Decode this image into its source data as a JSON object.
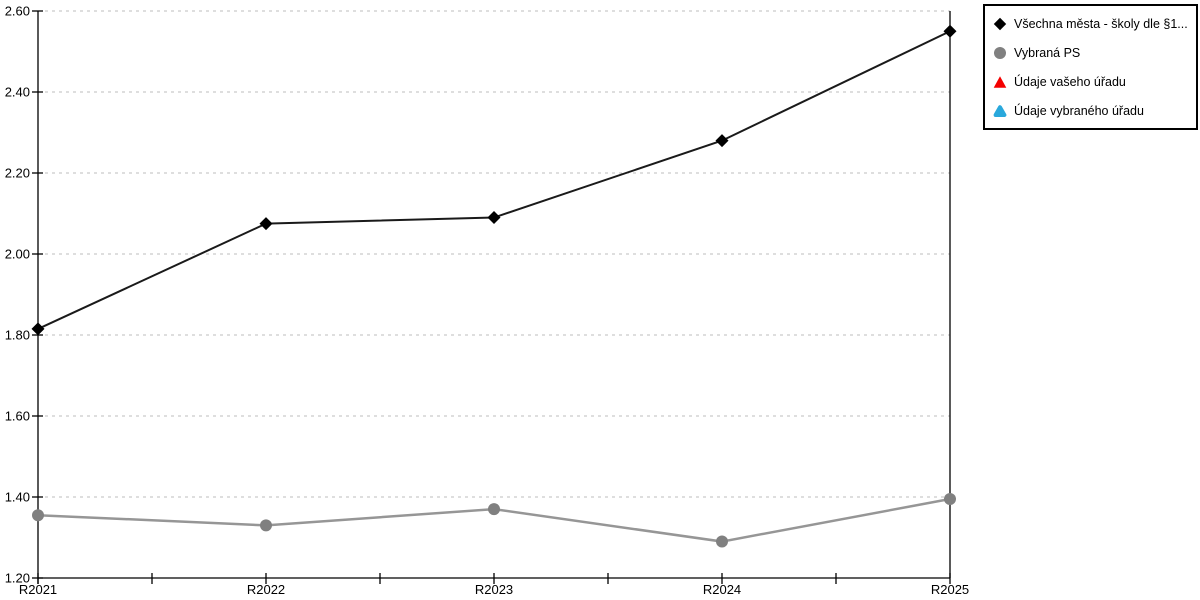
{
  "chart_data": {
    "type": "line",
    "title": "",
    "xlabel": "",
    "ylabel": "",
    "categories": [
      "R2021",
      "R2022",
      "R2023",
      "R2024",
      "R2025"
    ],
    "series": [
      {
        "name": "Všechna města - školy dle §1...",
        "marker": "diamond",
        "marker_icon": "diamond-icon",
        "color": "#000000",
        "line_color": "#1a1a1a",
        "values": [
          1.815,
          2.075,
          2.09,
          2.28,
          2.55
        ]
      },
      {
        "name": "Vybraná PS",
        "marker": "circle",
        "marker_icon": "circle-icon",
        "color": "#808080",
        "line_color": "#969696",
        "values": [
          1.355,
          1.33,
          1.37,
          1.29,
          1.395
        ]
      },
      {
        "name": "Údaje vašeho úřadu",
        "marker": "triangle",
        "marker_icon": "triangle-icon",
        "color": "#f40000",
        "line_color": "#f40000",
        "values": []
      },
      {
        "name": "Údaje vybraného úřadu",
        "marker": "rounded-triangle",
        "marker_icon": "rounded-triangle-icon",
        "color": "#29a8dc",
        "line_color": "#29a8dc",
        "values": []
      }
    ],
    "ylim": [
      1.2,
      2.6
    ],
    "ytick_step": 0.2,
    "ytick_labels": [
      "1.20",
      "1.40",
      "1.60",
      "1.80",
      "2.00",
      "2.20",
      "2.40",
      "2.60"
    ],
    "x_minor_ticks_per_interval": 1,
    "grid": "horizontal-dashed",
    "legend_position": "outside-top-right"
  },
  "colors": {
    "background": "#ffffff",
    "axis": "#000000",
    "grid": "#bdbdbd",
    "tick_text": "#000000",
    "legend_border": "#000000"
  }
}
